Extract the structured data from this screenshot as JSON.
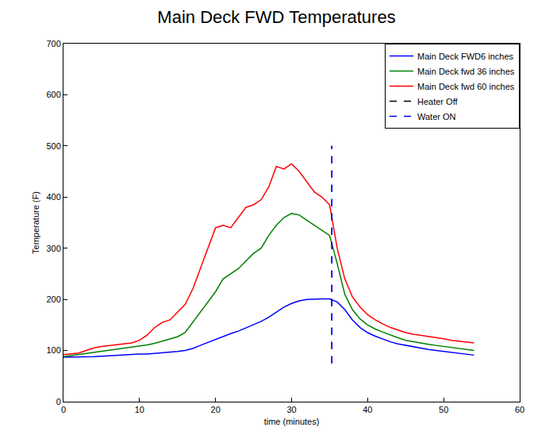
{
  "chart_data": {
    "type": "line",
    "title": "Main Deck FWD Temperatures",
    "x_label": "time (minutes)",
    "y_label": "Temperature (F)",
    "x": [
      0,
      1,
      2,
      3,
      4,
      5,
      6,
      7,
      8,
      9,
      10,
      11,
      12,
      13,
      14,
      15,
      16,
      17,
      18,
      19,
      20,
      21,
      22,
      23,
      24,
      25,
      26,
      27,
      28,
      29,
      30,
      31,
      32,
      33,
      34,
      35,
      36,
      37,
      38,
      39,
      40,
      41,
      42,
      43,
      44,
      45,
      46,
      47,
      48,
      49,
      50,
      51,
      52,
      53,
      54
    ],
    "series": [
      {
        "name": "Main Deck FWD6 inches",
        "color": "#0000ff",
        "line_style": "solid",
        "values": [
          87,
          87,
          87,
          88,
          88,
          89,
          90,
          90,
          91,
          92,
          93,
          93,
          94,
          95,
          96,
          98,
          100,
          104,
          110,
          116,
          122,
          128,
          133,
          138,
          144,
          150,
          157,
          165,
          175,
          185,
          192,
          197,
          200,
          201,
          201,
          201,
          195,
          180,
          160,
          145,
          135,
          128,
          122,
          117,
          113,
          110,
          107,
          104,
          102,
          100,
          98,
          96,
          94,
          92,
          91
        ]
      },
      {
        "name": "Main Deck fwd 36 inches",
        "color": "#008000",
        "line_style": "solid",
        "values": [
          88,
          90,
          92,
          94,
          96,
          98,
          100,
          102,
          104,
          106,
          108,
          111,
          114,
          118,
          122,
          127,
          135,
          155,
          175,
          195,
          215,
          240,
          250,
          260,
          275,
          290,
          300,
          325,
          345,
          360,
          368,
          365,
          355,
          345,
          335,
          325,
          270,
          210,
          180,
          162,
          150,
          142,
          136,
          130,
          125,
          120,
          117,
          115,
          112,
          110,
          108,
          106,
          104,
          102,
          100
        ]
      },
      {
        "name": "Main Deck fwd 60 inches",
        "color": "#ff0000",
        "line_style": "solid",
        "values": [
          92,
          93,
          95,
          100,
          105,
          108,
          110,
          112,
          113,
          115,
          120,
          130,
          145,
          155,
          160,
          175,
          190,
          220,
          260,
          300,
          340,
          345,
          340,
          360,
          380,
          385,
          395,
          420,
          460,
          455,
          465,
          450,
          430,
          410,
          400,
          385,
          300,
          240,
          205,
          185,
          170,
          160,
          152,
          145,
          140,
          135,
          132,
          130,
          127,
          125,
          123,
          120,
          118,
          116,
          115
        ]
      },
      {
        "name": "Heater Off",
        "color": "#000000",
        "line_style": "dashed",
        "x": [
          35.3,
          35.3
        ],
        "values": [
          75,
          500
        ]
      },
      {
        "name": "Water ON",
        "color": "#0000ff",
        "line_style": "dashed",
        "x": [
          35.3,
          35.3
        ],
        "values": [
          75,
          500
        ]
      }
    ],
    "xlim": [
      0,
      60
    ],
    "xticks": [
      0,
      10,
      20,
      30,
      40,
      50,
      60
    ],
    "ylim": [
      0,
      700
    ],
    "yticks": [
      0,
      100,
      200,
      300,
      400,
      500,
      600,
      700
    ],
    "grid": false,
    "legend": "top right"
  }
}
